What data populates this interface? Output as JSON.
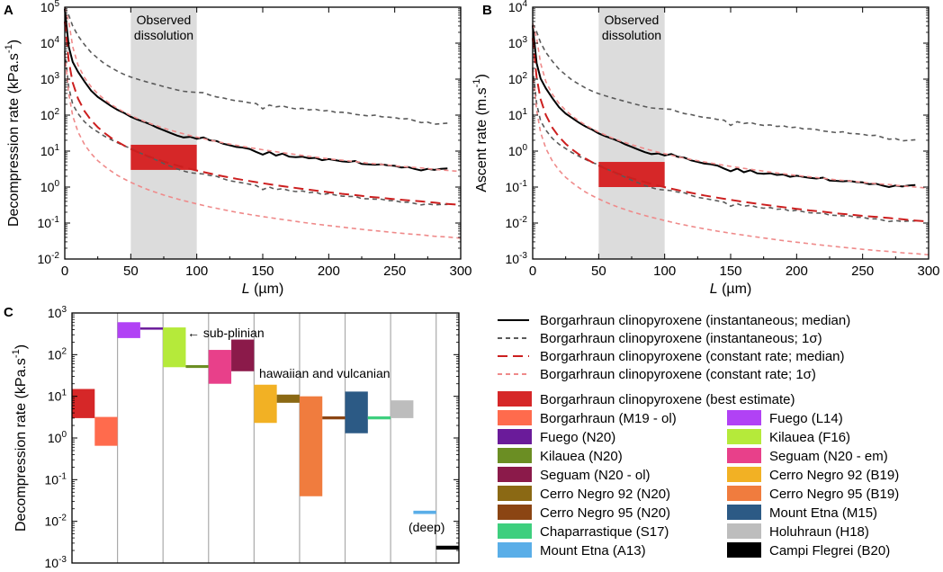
{
  "panel_labels": [
    "A",
    "B",
    "C"
  ],
  "legend_title": "",
  "chart_data": [
    {
      "type": "line",
      "panel": "A",
      "title": "",
      "xlabel": "L (µm)",
      "xlabel_var": "L",
      "xlabel_unit": " (µm)",
      "ylabel": "Decompression rate (kPa.s⁻¹)",
      "ylabel_main": "Decompression rate (kPa.s",
      "ylabel_sup": "-1",
      "ylabel_close": ")",
      "xlim": [
        0,
        300
      ],
      "ylim": [
        0.01,
        100000
      ],
      "yscale": "log",
      "xticks": [
        "0",
        "50",
        "100",
        "150",
        "200",
        "250",
        "300"
      ],
      "yticks": [
        {
          "base": "10",
          "exp": "-2"
        },
        {
          "base": "10",
          "exp": "-1"
        },
        {
          "base": "10",
          "exp": "0"
        },
        {
          "base": "10",
          "exp": "1"
        },
        {
          "base": "10",
          "exp": "2"
        },
        {
          "base": "10",
          "exp": "3"
        },
        {
          "base": "10",
          "exp": "4"
        },
        {
          "base": "10",
          "exp": "5"
        }
      ],
      "shaded_region": {
        "x": [
          50,
          100
        ],
        "label_line1": "Observed",
        "label_line2": "dissolution"
      },
      "best_estimate_box": {
        "x": [
          50,
          100
        ],
        "y": [
          3,
          15
        ]
      },
      "series": [
        {
          "name": "Borgarhraun clinopyroxene (instantaneous; median)",
          "x": [
            0,
            3,
            6,
            10,
            15,
            20,
            25,
            30,
            35,
            40,
            45,
            50,
            55,
            60,
            65,
            70,
            75,
            80,
            85,
            90,
            95,
            100,
            105,
            110,
            115,
            120,
            125,
            130,
            135,
            140,
            145,
            150,
            155,
            160,
            165,
            170,
            175,
            180,
            185,
            190,
            195,
            200,
            205,
            210,
            215,
            220,
            225,
            230,
            235,
            240,
            245,
            250,
            255,
            260,
            265,
            270,
            275,
            280,
            285,
            290
          ],
          "values": [
            90000,
            8000,
            3000,
            1600,
            850,
            480,
            320,
            240,
            180,
            140,
            115,
            90,
            75,
            65,
            55,
            45,
            38,
            32,
            27,
            24,
            25,
            22,
            24,
            20,
            19,
            16,
            14.5,
            13,
            12.5,
            11.5,
            9.5,
            8,
            9.5,
            7.5,
            8.5,
            7,
            6.8,
            7,
            6.3,
            6.5,
            5.6,
            6,
            5.6,
            5.2,
            5,
            5.3,
            4.4,
            4.3,
            4.2,
            4.3,
            4.0,
            3.9,
            3.5,
            3.6,
            3.2,
            2.9,
            3.2,
            3.0,
            3.2,
            3.3
          ]
        },
        {
          "name": "Borgarhraun clinopyroxene (instantaneous; 1σ) upper",
          "x": [
            0,
            3,
            6,
            10,
            15,
            20,
            25,
            30,
            35,
            40,
            45,
            50,
            55,
            60,
            65,
            70,
            75,
            80,
            85,
            90,
            95,
            100,
            105,
            110,
            115,
            120,
            125,
            130,
            135,
            140,
            145,
            150,
            155,
            160,
            165,
            170,
            175,
            180,
            185,
            190,
            195,
            200,
            205,
            210,
            215,
            220,
            225,
            230,
            235,
            240,
            245,
            250,
            255,
            260,
            265,
            270,
            275,
            280,
            285,
            290
          ],
          "values": [
            100000,
            60000,
            30000,
            16000,
            9000,
            5500,
            3800,
            2700,
            2100,
            1650,
            1350,
            1150,
            1000,
            880,
            780,
            700,
            620,
            560,
            500,
            460,
            440,
            430,
            420,
            360,
            320,
            300,
            270,
            250,
            240,
            220,
            210,
            150,
            190,
            170,
            180,
            160,
            150,
            155,
            140,
            145,
            130,
            135,
            120,
            120,
            115,
            105,
            100,
            95,
            100,
            90,
            88,
            85,
            78,
            80,
            70,
            62,
            64,
            56,
            58,
            60
          ]
        },
        {
          "name": "Borgarhraun clinopyroxene (instantaneous; 1σ) lower",
          "x": [
            0,
            3,
            6,
            10,
            15,
            20,
            25,
            30,
            35,
            40,
            45,
            50,
            55,
            60,
            65,
            70,
            75,
            80,
            85,
            90,
            95,
            100,
            105,
            110,
            115,
            120,
            125,
            130,
            135,
            140,
            145,
            150,
            155,
            160,
            165,
            170,
            175,
            180,
            185,
            190,
            195,
            200,
            205,
            210,
            215,
            220,
            225,
            230,
            235,
            240,
            245,
            250,
            255,
            260,
            265,
            270,
            275,
            280,
            285,
            290
          ],
          "values": [
            6000,
            600,
            200,
            110,
            65,
            45,
            34,
            26,
            21,
            17,
            14,
            12,
            9.5,
            8,
            6.5,
            5.5,
            4.5,
            3.8,
            3.2,
            2.8,
            2.5,
            2.4,
            2.3,
            2.1,
            2.0,
            1.7,
            1.5,
            1.4,
            1.3,
            1.2,
            1.1,
            0.85,
            1.0,
            0.85,
            0.9,
            0.8,
            0.75,
            0.78,
            0.7,
            0.72,
            0.62,
            0.66,
            0.6,
            0.56,
            0.55,
            0.55,
            0.48,
            0.47,
            0.46,
            0.46,
            0.42,
            0.42,
            0.38,
            0.38,
            0.35,
            0.32,
            0.34,
            0.32,
            0.33,
            0.33
          ]
        },
        {
          "name": "Borgarhraun clinopyroxene (constant rate; median)",
          "x": [
            0,
            3,
            6,
            10,
            15,
            20,
            25,
            30,
            35,
            40,
            45,
            50,
            55,
            60,
            65,
            70,
            75,
            80,
            85,
            90,
            95,
            100,
            110,
            120,
            130,
            140,
            150,
            160,
            170,
            180,
            190,
            200,
            210,
            220,
            230,
            240,
            250,
            260,
            270,
            280,
            290,
            300
          ],
          "values": [
            40000,
            3200,
            800,
            288,
            128,
            72,
            46,
            32,
            23.5,
            18,
            14.2,
            11.5,
            9.5,
            8.0,
            6.8,
            5.9,
            5.1,
            4.5,
            4.0,
            3.55,
            3.19,
            2.88,
            2.38,
            2.0,
            1.7,
            1.47,
            1.28,
            1.12,
            1.0,
            0.89,
            0.8,
            0.72,
            0.65,
            0.6,
            0.54,
            0.5,
            0.46,
            0.43,
            0.4,
            0.37,
            0.34,
            0.32
          ]
        },
        {
          "name": "Borgarhraun clinopyroxene (constant rate; 1σ) upper",
          "x": [
            0,
            3,
            6,
            10,
            15,
            20,
            25,
            30,
            35,
            40,
            45,
            50,
            55,
            60,
            65,
            70,
            75,
            80,
            85,
            90,
            95,
            100,
            110,
            120,
            130,
            140,
            150,
            160,
            170,
            180,
            190,
            200,
            210,
            220,
            230,
            240,
            250,
            260,
            270,
            280,
            290,
            300
          ],
          "values": [
            100000,
            40000,
            8000,
            2450,
            1090,
            612,
            392,
            272,
            200,
            153,
            121,
            98,
            81,
            68,
            58,
            50,
            43.5,
            38.2,
            33.9,
            30.2,
            27.1,
            24.5,
            20.2,
            17.0,
            14.5,
            12.5,
            10.9,
            9.6,
            8.5,
            7.6,
            6.8,
            6.1,
            5.6,
            5.1,
            4.6,
            4.3,
            3.9,
            3.6,
            3.4,
            3.1,
            2.9,
            2.7
          ]
        },
        {
          "name": "Borgarhraun clinopyroxene (constant rate; 1σ) lower",
          "x": [
            0,
            3,
            6,
            10,
            15,
            20,
            25,
            30,
            35,
            40,
            45,
            50,
            55,
            60,
            65,
            70,
            75,
            80,
            85,
            90,
            95,
            100,
            110,
            120,
            130,
            140,
            150,
            160,
            170,
            180,
            190,
            200,
            210,
            220,
            230,
            240,
            250,
            260,
            270,
            280,
            290,
            300
          ],
          "values": [
            5000,
            400,
            95,
            34,
            15.1,
            8.5,
            5.4,
            3.8,
            2.8,
            2.1,
            1.68,
            1.36,
            1.12,
            0.94,
            0.8,
            0.69,
            0.6,
            0.53,
            0.47,
            0.42,
            0.38,
            0.34,
            0.28,
            0.236,
            0.2,
            0.173,
            0.151,
            0.133,
            0.118,
            0.105,
            0.094,
            0.085,
            0.077,
            0.07,
            0.064,
            0.059,
            0.054,
            0.05,
            0.047,
            0.043,
            0.041,
            0.038
          ]
        }
      ]
    },
    {
      "type": "line",
      "panel": "B",
      "title": "",
      "xlabel": "L (µm)",
      "xlabel_var": "L",
      "xlabel_unit": " (µm)",
      "ylabel": "Ascent rate (m.s⁻¹)",
      "ylabel_main": "Ascent rate (m.s",
      "ylabel_sup": "-1",
      "ylabel_close": ")",
      "xlim": [
        0,
        300
      ],
      "ylim": [
        0.001,
        10000
      ],
      "yscale": "log",
      "xticks": [
        "0",
        "50",
        "100",
        "150",
        "200",
        "250",
        "300"
      ],
      "yticks": [
        {
          "base": "10",
          "exp": "-3"
        },
        {
          "base": "10",
          "exp": "-2"
        },
        {
          "base": "10",
          "exp": "-1"
        },
        {
          "base": "10",
          "exp": "0"
        },
        {
          "base": "10",
          "exp": "1"
        },
        {
          "base": "10",
          "exp": "2"
        },
        {
          "base": "10",
          "exp": "3"
        },
        {
          "base": "10",
          "exp": "4"
        }
      ],
      "shaded_region": {
        "x": [
          50,
          100
        ],
        "label_line1": "Observed",
        "label_line2": "dissolution"
      },
      "best_estimate_box": {
        "x": [
          50,
          100
        ],
        "y": [
          0.1,
          0.5
        ]
      },
      "series_scale_from_panel_A": 0.0345
    },
    {
      "type": "bar",
      "panel": "C",
      "title": "",
      "ylabel": "Decompression rate (kPa.s⁻¹)",
      "ylabel_main": "Decompression rate (kPa.s",
      "ylabel_sup": "-1",
      "ylabel_close": ")",
      "yscale": "log",
      "ylim": [
        0.001,
        1000
      ],
      "yticks": [
        {
          "base": "10",
          "exp": "-3"
        },
        {
          "base": "10",
          "exp": "-2"
        },
        {
          "base": "10",
          "exp": "-1"
        },
        {
          "base": "10",
          "exp": "0"
        },
        {
          "base": "10",
          "exp": "1"
        },
        {
          "base": "10",
          "exp": "2"
        },
        {
          "base": "10",
          "exp": "3"
        }
      ],
      "annotations": [
        "← sub-plinian",
        "hawaiian and vulcanian",
        "(deep)"
      ],
      "columns": 17,
      "ranges": [
        {
          "name": "Borgarhraun clinopyroxene (best estimate)",
          "color": "#d62728",
          "col": 0,
          "low": 3,
          "high": 15
        },
        {
          "name": "Borgarhraun (M19 - ol)",
          "color": "#ff6b4d",
          "col": 1,
          "low": 0.65,
          "high": 3.2
        },
        {
          "name": "Fuego (L14)",
          "color": "#b142f5",
          "col": 2,
          "low": 250,
          "high": 600
        },
        {
          "name": "Fuego (N20)",
          "color": "#6a1b9a",
          "col": 3,
          "low": 400,
          "high": 450
        },
        {
          "name": "Kilauea (F16)",
          "color": "#b5ea3a",
          "col": 4,
          "low": 50,
          "high": 450
        },
        {
          "name": "Kilauea (N20)",
          "color": "#6b8e23",
          "col": 5,
          "low": 48,
          "high": 56
        },
        {
          "name": "Seguam (N20 - em)",
          "color": "#e8408a",
          "col": 6,
          "low": 20,
          "high": 130
        },
        {
          "name": "Seguam (N20 - ol)",
          "color": "#8b1a4a",
          "col": 7,
          "low": 40,
          "high": 230
        },
        {
          "name": "Cerro Negro 92 (B19)",
          "color": "#f2b124",
          "col": 8,
          "low": 2.3,
          "high": 19
        },
        {
          "name": "Cerro Negro 92 (N20)",
          "color": "#8b6914",
          "col": 9,
          "low": 7,
          "high": 11
        },
        {
          "name": "Cerro Negro 95 (B19)",
          "color": "#f07c3e",
          "col": 10,
          "low": 0.04,
          "high": 10
        },
        {
          "name": "Cerro Negro 95 (N20)",
          "color": "#8b4513",
          "col": 11,
          "low": 2.8,
          "high": 3.3
        },
        {
          "name": "Mount Etna (M15)",
          "color": "#2c5a85",
          "col": 12,
          "low": 1.3,
          "high": 13
        },
        {
          "name": "Chaparrastique (S17)",
          "color": "#3ecf7e",
          "col": 13,
          "low": 2.8,
          "high": 3.3
        },
        {
          "name": "Holuhraun (H18)",
          "color": "#bdbdbd",
          "col": 14,
          "low": 3,
          "high": 8
        },
        {
          "name": "Mount Etna (A13)",
          "color": "#5aaee8",
          "col": 15,
          "low": 0.015,
          "high": 0.018
        },
        {
          "name": "Campi Flegrei (B20)",
          "color": "#000000",
          "col": 16,
          "low": 0.0021,
          "high": 0.0026
        }
      ]
    }
  ],
  "legend": {
    "lines": [
      {
        "label": "Borgarhraun clinopyroxene (instantaneous; median)",
        "color": "#000000",
        "dash": "solid"
      },
      {
        "label": "Borgarhraun clinopyroxene (instantaneous; 1σ)",
        "color": "#5a5a5a",
        "dash": "short"
      },
      {
        "label": "Borgarhraun clinopyroxene (constant rate; median)",
        "color": "#cc1f1f",
        "dash": "long"
      },
      {
        "label": "Borgarhraun clinopyroxene (constant rate; 1σ)",
        "color": "#ef8a8a",
        "dash": "short"
      }
    ],
    "swatches": [
      {
        "label": "Borgarhraun clinopyroxene (best estimate)",
        "color": "#d62728"
      },
      {
        "label": "Borgarhraun (M19 - ol)",
        "color": "#ff6b4d"
      },
      {
        "label": "Fuego (L14)",
        "color": "#b142f5"
      },
      {
        "label": "Fuego (N20)",
        "color": "#6a1b9a"
      },
      {
        "label": "Kilauea (F16)",
        "color": "#b5ea3a"
      },
      {
        "label": "Kilauea (N20)",
        "color": "#6b8e23"
      },
      {
        "label": "Seguam (N20 - em)",
        "color": "#e8408a"
      },
      {
        "label": "Seguam (N20 - ol)",
        "color": "#8b1a4a"
      },
      {
        "label": "Cerro Negro 92 (B19)",
        "color": "#f2b124"
      },
      {
        "label": "Cerro Negro 92 (N20)",
        "color": "#8b6914"
      },
      {
        "label": "Cerro Negro 95 (B19)",
        "color": "#f07c3e"
      },
      {
        "label": "Cerro Negro 95 (N20)",
        "color": "#8b4513"
      },
      {
        "label": "Mount Etna (M15)",
        "color": "#2c5a85"
      },
      {
        "label": "Chaparrastique (S17)",
        "color": "#3ecf7e"
      },
      {
        "label": "Holuhraun (H18)",
        "color": "#bdbdbd"
      },
      {
        "label": "Mount Etna (A13)",
        "color": "#5aaee8"
      },
      {
        "label": "Campi Flegrei (B20)",
        "color": "#000000"
      }
    ]
  }
}
